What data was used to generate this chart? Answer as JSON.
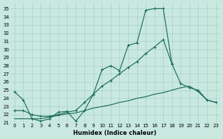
{
  "bg_color": "#c8e8e0",
  "grid_color": "#a0ccbe",
  "line_color": "#1a6b58",
  "xlabel": "Humidex (Indice chaleur)",
  "xlim": [
    -0.5,
    23.5
  ],
  "ylim": [
    21.0,
    35.7
  ],
  "yticks": [
    21,
    22,
    23,
    24,
    25,
    26,
    27,
    28,
    29,
    30,
    31,
    32,
    33,
    34,
    35
  ],
  "xticks": [
    0,
    1,
    2,
    3,
    4,
    5,
    6,
    7,
    8,
    9,
    10,
    11,
    12,
    13,
    14,
    15,
    16,
    17,
    18,
    19,
    20,
    21,
    22,
    23
  ],
  "curve1_x": [
    0,
    1,
    2,
    3,
    4,
    5,
    6,
    7,
    8,
    9,
    10,
    11,
    12,
    13,
    14,
    15,
    16,
    17,
    18
  ],
  "curve1_y": [
    24.8,
    23.8,
    21.5,
    21.2,
    21.5,
    22.3,
    22.4,
    21.2,
    22.5,
    24.5,
    27.5,
    28.0,
    27.4,
    30.5,
    30.8,
    34.8,
    35.0,
    35.0,
    28.2
  ],
  "curve2_x": [
    0,
    1,
    2,
    3,
    4,
    5,
    6,
    7,
    8,
    9,
    10,
    11,
    12,
    13,
    14,
    15,
    16,
    17,
    18,
    19,
    20,
    21,
    22,
    23
  ],
  "curve2_y": [
    22.5,
    22.5,
    22.0,
    21.8,
    21.8,
    22.0,
    22.3,
    22.5,
    23.5,
    24.5,
    25.5,
    26.2,
    27.0,
    27.8,
    28.5,
    29.5,
    30.3,
    31.2,
    28.2,
    25.8,
    25.3,
    25.0,
    23.8,
    23.5
  ],
  "curve3_x": [
    0,
    1,
    2,
    3,
    4,
    5,
    6,
    7,
    8,
    9,
    10,
    11,
    12,
    13,
    14,
    15,
    16,
    17,
    18,
    19,
    20,
    21,
    22,
    23
  ],
  "curve3_y": [
    21.5,
    21.5,
    21.5,
    21.5,
    21.7,
    21.9,
    22.1,
    22.2,
    22.5,
    22.8,
    23.0,
    23.2,
    23.5,
    23.7,
    24.0,
    24.2,
    24.5,
    24.7,
    25.0,
    25.3,
    25.5,
    24.8,
    23.8,
    23.5
  ]
}
